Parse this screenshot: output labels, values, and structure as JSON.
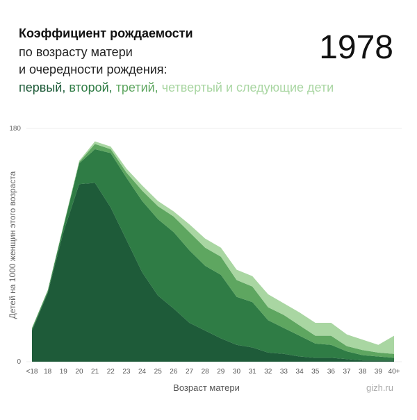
{
  "chart_data": {
    "type": "stacked_area",
    "title": "Коэффициент рождаемости",
    "subtitle": [
      "по возрасту матери",
      "и очередности рождения:"
    ],
    "annotation": "1978",
    "source": "gizh.ru",
    "x_label": "Возраст матери",
    "y_label": "Детей на 1000 женщин этого возраста",
    "categories": [
      "<18",
      "18",
      "19",
      "20",
      "21",
      "22",
      "23",
      "24",
      "25",
      "26",
      "27",
      "28",
      "29",
      "30",
      "31",
      "32",
      "33",
      "34",
      "35",
      "36",
      "37",
      "38",
      "39",
      "40+"
    ],
    "series": [
      {
        "name": "первый,",
        "color": "#1e5b39",
        "values": [
          24,
          53,
          100,
          137,
          138,
          119,
          94,
          69,
          51,
          41,
          30,
          24,
          18,
          13,
          11,
          7,
          6,
          4,
          3,
          3,
          2,
          1,
          1,
          1
        ]
      },
      {
        "name": "второй,",
        "color": "#2f7c45",
        "values": [
          1,
          1,
          4,
          16,
          26,
          42,
          48,
          55,
          59,
          59,
          56,
          50,
          49,
          37,
          35,
          25,
          20,
          16,
          11,
          10,
          6,
          4,
          3,
          2
        ]
      },
      {
        "name": "третий,",
        "color": "#5ea660",
        "values": [
          1,
          1,
          1,
          1,
          4,
          3,
          4,
          8,
          10,
          12,
          14,
          14,
          14,
          13,
          12,
          10,
          10,
          8,
          6,
          7,
          4,
          4,
          3,
          3
        ]
      },
      {
        "name": "четвертый и следующие дети",
        "color": "#a9d6a2",
        "values": [
          0,
          0,
          0,
          1,
          2,
          2,
          3,
          4,
          4,
          4,
          6,
          7,
          7,
          8,
          8,
          10,
          9,
          10,
          10,
          10,
          9,
          8,
          6,
          14
        ]
      }
    ],
    "ylim": [
      0,
      180
    ],
    "yticks": [
      0,
      180
    ],
    "grid": true
  }
}
